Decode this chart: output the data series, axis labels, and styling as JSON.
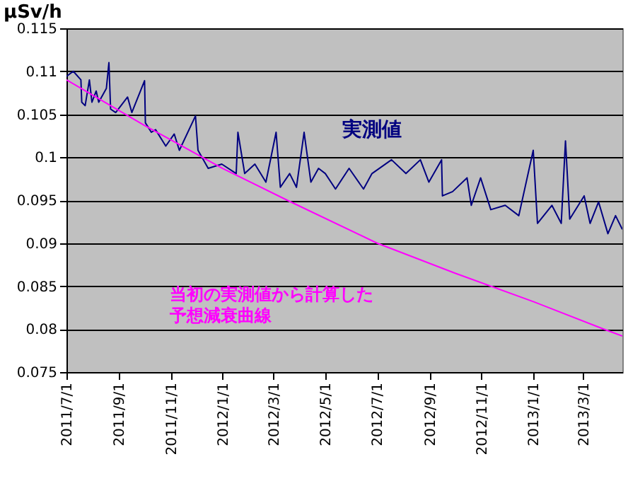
{
  "chart_data": {
    "type": "line",
    "ylabel": "μSv/h",
    "xlim": [
      "2011-07-01",
      "2013-04-16"
    ],
    "xticks": [
      {
        "value": "2011-07-01",
        "label": "2011/7/1"
      },
      {
        "value": "2011-09-01",
        "label": "2011/9/1"
      },
      {
        "value": "2011-11-01",
        "label": "2011/11/1"
      },
      {
        "value": "2012-01-01",
        "label": "2012/1/1"
      },
      {
        "value": "2012-03-01",
        "label": "2012/3/1"
      },
      {
        "value": "2012-05-01",
        "label": "2012/5/1"
      },
      {
        "value": "2012-07-01",
        "label": "2012/7/1"
      },
      {
        "value": "2012-09-01",
        "label": "2012/9/1"
      },
      {
        "value": "2012-11-01",
        "label": "2012/11/1"
      },
      {
        "value": "2013-01-01",
        "label": "2013/1/1"
      },
      {
        "value": "2013-03-01",
        "label": "2013/3/1"
      }
    ],
    "ylim": [
      0.075,
      0.115
    ],
    "yticks": [
      0.075,
      0.08,
      0.085,
      0.09,
      0.095,
      0.1,
      0.105,
      0.11,
      0.115
    ],
    "grid": "y",
    "marker": "none",
    "line_style": "solid",
    "series": [
      {
        "name": "実測値",
        "color": "#000080",
        "x": [
          "2011-07-01",
          "2011-07-09",
          "2011-07-18",
          "2011-07-19",
          "2011-07-23",
          "2011-07-28",
          "2011-07-31",
          "2011-08-05",
          "2011-08-08",
          "2011-08-17",
          "2011-08-20",
          "2011-08-22",
          "2011-08-28",
          "2011-09-11",
          "2011-09-16",
          "2011-10-01",
          "2011-10-02",
          "2011-10-09",
          "2011-10-14",
          "2011-10-26",
          "2011-11-05",
          "2011-11-11",
          "2011-11-30",
          "2011-12-03",
          "2011-12-15",
          "2011-12-31",
          "2012-01-17",
          "2012-01-19",
          "2012-01-27",
          "2012-02-08",
          "2012-02-21",
          "2012-03-04",
          "2012-03-09",
          "2012-03-20",
          "2012-03-28",
          "2012-04-06",
          "2012-04-14",
          "2012-04-23",
          "2012-05-01",
          "2012-05-13",
          "2012-05-29",
          "2012-06-15",
          "2012-06-25",
          "2012-07-18",
          "2012-08-04",
          "2012-08-21",
          "2012-08-31",
          "2012-09-15",
          "2012-09-16",
          "2012-09-28",
          "2012-10-15",
          "2012-10-20",
          "2012-10-31",
          "2012-11-12",
          "2012-11-29",
          "2012-12-15",
          "2013-01-01",
          "2013-01-06",
          "2013-01-23",
          "2013-02-03",
          "2013-02-08",
          "2013-02-13",
          "2013-03-02",
          "2013-03-09",
          "2013-03-19",
          "2013-03-30",
          "2013-04-08",
          "2013-04-16"
        ],
        "values": [
          0.1094,
          0.11,
          0.109,
          0.1064,
          0.106,
          0.109,
          0.1064,
          0.1077,
          0.1064,
          0.108,
          0.111,
          0.1056,
          0.1052,
          0.107,
          0.1052,
          0.1089,
          0.104,
          0.1029,
          0.1032,
          0.1013,
          0.1027,
          0.1008,
          0.1048,
          0.1008,
          0.0987,
          0.0992,
          0.0981,
          0.1029,
          0.0981,
          0.0992,
          0.0971,
          0.1029,
          0.0965,
          0.0981,
          0.0965,
          0.1029,
          0.0971,
          0.0987,
          0.0981,
          0.0963,
          0.0987,
          0.0963,
          0.0981,
          0.0997,
          0.0981,
          0.0997,
          0.0971,
          0.0997,
          0.0955,
          0.096,
          0.0976,
          0.0944,
          0.0976,
          0.0939,
          0.0944,
          0.0932,
          0.1008,
          0.0923,
          0.0944,
          0.0923,
          0.1019,
          0.0928,
          0.0955,
          0.0923,
          0.0948,
          0.0911,
          0.0932,
          0.0916
        ]
      },
      {
        "name": "当初の実測値から計算した予想減衰曲線",
        "color": "#ff00ff",
        "x": [
          "2011-07-01",
          "2011-10-01",
          "2012-01-01",
          "2012-03-17",
          "2012-07-01",
          "2012-10-01",
          "2013-01-01",
          "2013-03-25",
          "2013-04-16"
        ],
        "values": [
          0.109,
          0.1037,
          0.0987,
          0.095,
          0.09,
          0.0865,
          0.0832,
          0.08,
          0.0792
        ]
      }
    ]
  }
}
